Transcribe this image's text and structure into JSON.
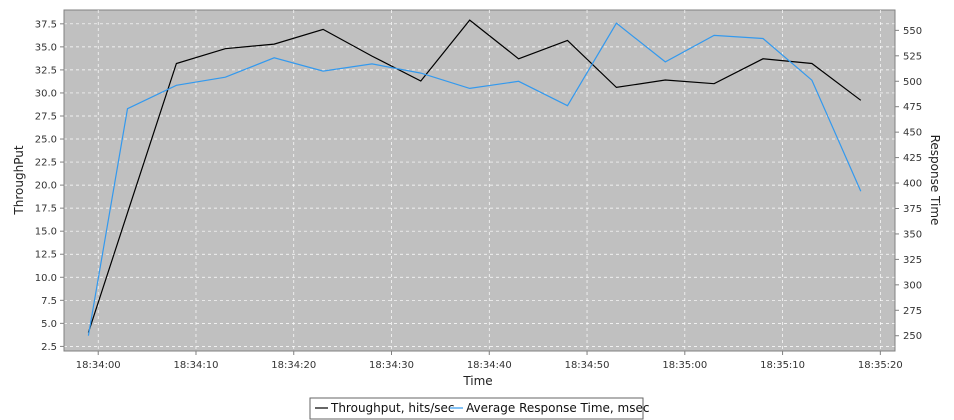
{
  "chart_data": {
    "type": "line",
    "xlabel": "Time",
    "ylabel_left": "ThroughPut",
    "ylabel_right": "Response Time",
    "x_ticks": [
      "18:34:00",
      "18:34:10",
      "18:34:20",
      "18:34:30",
      "18:34:40",
      "18:34:50",
      "18:35:00",
      "18:35:10",
      "18:35:20"
    ],
    "x_tick_seconds": [
      0,
      10,
      20,
      30,
      40,
      50,
      60,
      70,
      80
    ],
    "xlim": [
      -3.5,
      81.5
    ],
    "ylim_left": [
      2,
      39
    ],
    "ylim_right": [
      235,
      570
    ],
    "y_ticks_left": [
      "2.5",
      "5.0",
      "7.5",
      "10.0",
      "12.5",
      "15.0",
      "17.5",
      "20.0",
      "22.5",
      "25.0",
      "27.5",
      "30.0",
      "32.5",
      "35.0",
      "37.5"
    ],
    "y_ticks_right": [
      "250",
      "275",
      "300",
      "325",
      "350",
      "375",
      "400",
      "425",
      "450",
      "475",
      "500",
      "525",
      "550"
    ],
    "grid": true,
    "legend_position": "bottom",
    "series": [
      {
        "name": "Throughput, hits/sec",
        "axis": "left",
        "color": "#000000",
        "x_seconds": [
          -1,
          3,
          8,
          13,
          18,
          23,
          28,
          33,
          38,
          43,
          48,
          53,
          58,
          63,
          68,
          73,
          78
        ],
        "values": [
          4.0,
          17.0,
          33.2,
          34.8,
          35.3,
          36.9,
          34.0,
          31.3,
          37.9,
          33.7,
          35.7,
          30.6,
          31.4,
          31.0,
          33.7,
          33.2,
          29.2
        ]
      },
      {
        "name": "Average Response Time, msec",
        "axis": "right",
        "color": "#3399ee",
        "x_seconds": [
          -1,
          3,
          8,
          13,
          18,
          23,
          28,
          33,
          38,
          43,
          48,
          53,
          58,
          63,
          68,
          73,
          78
        ],
        "values": [
          250,
          473,
          496,
          504,
          523,
          510,
          517,
          508,
          493,
          500,
          476,
          557,
          519,
          545,
          542,
          501,
          392
        ]
      }
    ]
  }
}
